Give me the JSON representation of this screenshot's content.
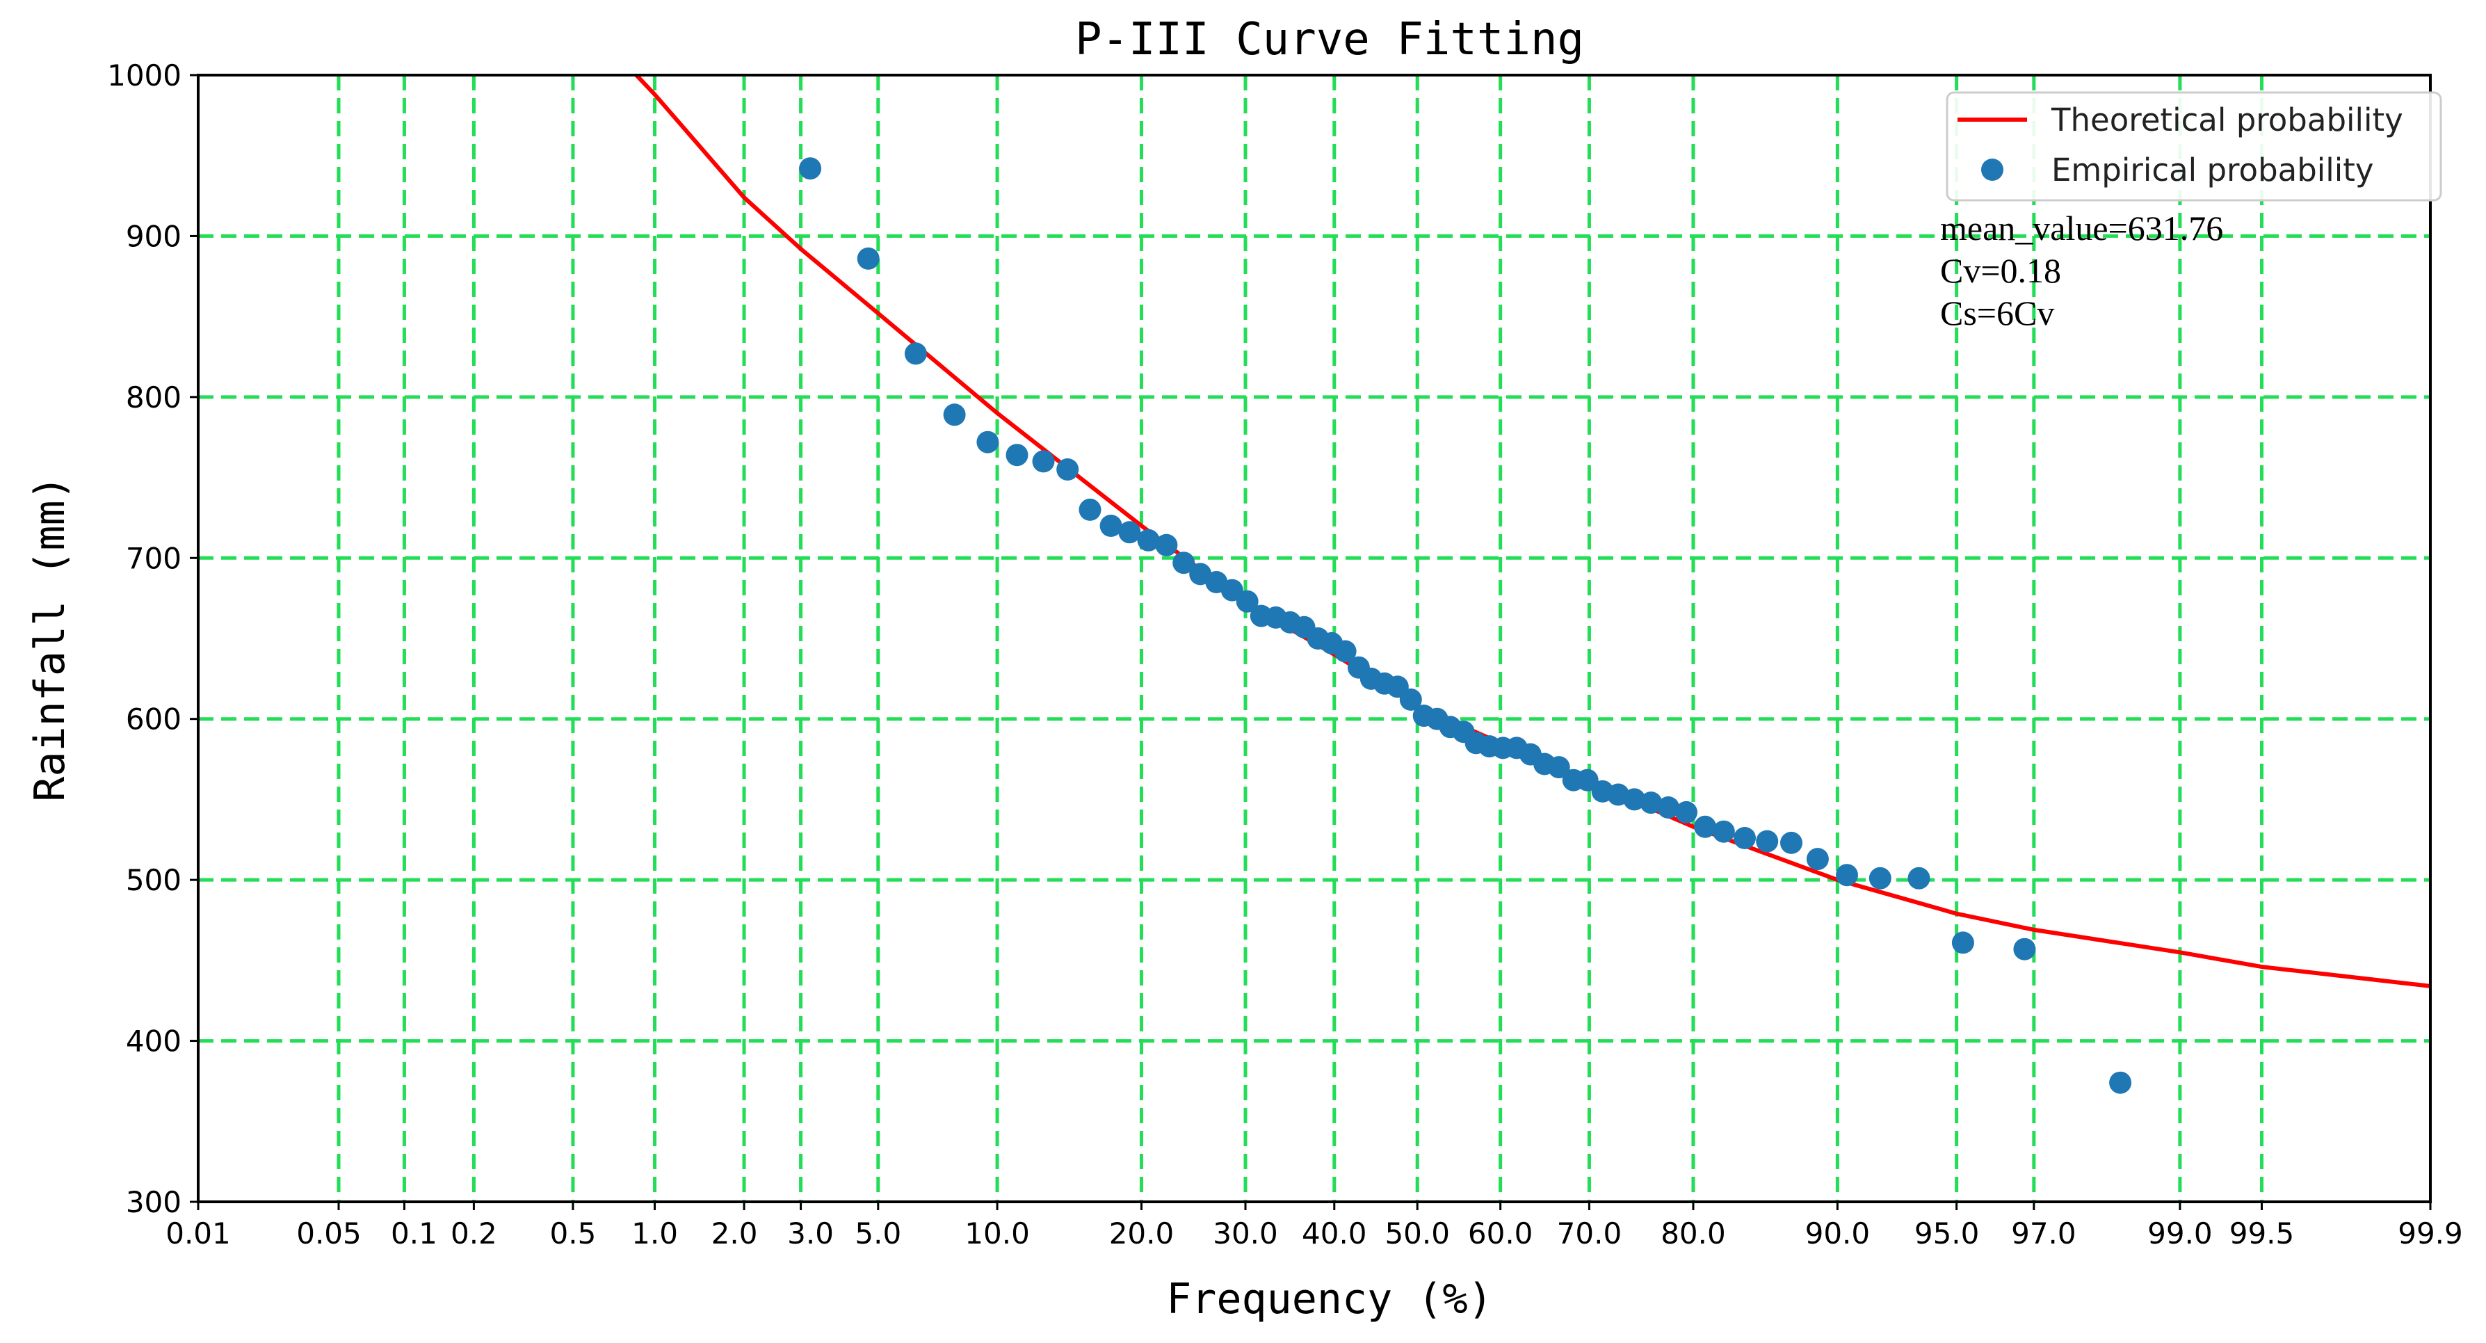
{
  "chart_data": {
    "type": "scatter",
    "title": "P-III Curve Fitting",
    "xlabel": "Frequency (%)",
    "ylabel": "Rainfall (mm)",
    "x_scale": "normal-probability",
    "ylim": [
      300,
      1000
    ],
    "yticks": [
      300,
      400,
      500,
      600,
      700,
      800,
      900,
      1000
    ],
    "xticks": [
      0.01,
      0.05,
      0.1,
      0.2,
      0.5,
      1.0,
      2.0,
      3.0,
      5.0,
      10.0,
      20.0,
      30.0,
      40.0,
      50.0,
      60.0,
      70.0,
      80.0,
      90.0,
      95.0,
      97.0,
      99.0,
      99.5,
      99.9
    ],
    "xtick_labels": [
      "0.01",
      "0.05",
      "0.1",
      "0.2",
      "0.5",
      "1.0",
      "2.0",
      "3.0",
      "5.0",
      "10.0",
      "20.0",
      "30.0",
      "40.0",
      "50.0",
      "60.0",
      "70.0",
      "80.0",
      "90.0",
      "95.0",
      "97.0",
      "99.0",
      "99.5",
      "99.9"
    ],
    "grid": true,
    "legend_position": "top-right",
    "series": [
      {
        "name": "Theoretical probability",
        "kind": "line",
        "color": "#ff0000",
        "x": [
          0.86,
          1.0,
          2.0,
          3.0,
          5.0,
          10.0,
          20.0,
          30.0,
          40.0,
          50.0,
          60.0,
          70.0,
          80.0,
          90.0,
          95.0,
          97.0,
          99.0,
          99.5,
          99.9
        ],
        "values": [
          1000,
          988,
          924,
          892,
          852,
          790,
          720,
          672,
          640,
          608,
          585,
          561,
          533,
          500,
          479,
          469,
          455,
          446,
          434
        ]
      },
      {
        "name": "Empirical probability",
        "kind": "scatter",
        "color": "#1f77b4",
        "x": [
          3.2,
          4.7,
          6.3,
          7.9,
          9.5,
          11.1,
          12.7,
          14.3,
          15.9,
          17.5,
          19.0,
          20.6,
          22.2,
          23.8,
          25.4,
          27.0,
          28.6,
          30.2,
          31.7,
          33.3,
          34.9,
          36.5,
          38.1,
          39.7,
          41.3,
          42.9,
          44.4,
          46.0,
          47.6,
          49.2,
          50.8,
          52.4,
          54.0,
          55.6,
          57.1,
          58.7,
          60.3,
          61.9,
          63.5,
          65.1,
          66.7,
          68.3,
          69.8,
          71.4,
          73.0,
          74.6,
          76.2,
          77.8,
          79.4,
          81.0,
          82.5,
          84.1,
          85.7,
          87.3,
          88.9,
          90.5,
          92.1,
          93.7,
          95.2,
          96.8,
          98.4
        ],
        "values": [
          942,
          886,
          827,
          789,
          772,
          764,
          760,
          755,
          730,
          720,
          716,
          711,
          708,
          697,
          690,
          685,
          680,
          673,
          664,
          663,
          660,
          657,
          650,
          647,
          642,
          632,
          625,
          622,
          620,
          612,
          602,
          600,
          595,
          592,
          585,
          583,
          582,
          582,
          578,
          572,
          570,
          562,
          562,
          555,
          553,
          550,
          548,
          545,
          542,
          533,
          530,
          526,
          524,
          523,
          513,
          503,
          501,
          501,
          461,
          457,
          374
        ]
      }
    ],
    "annotations": [
      "mean_value=631.76",
      "Cv=0.18",
      "Cs=6Cv"
    ]
  }
}
